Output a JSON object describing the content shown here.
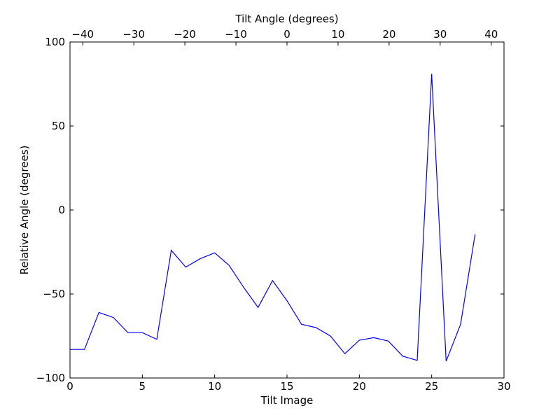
{
  "chart_data": {
    "type": "line",
    "title": "",
    "xlabel": "Tilt Image",
    "ylabel": "Relative Angle (degrees)",
    "top_xlabel": "Tilt Angle (degrees)",
    "xlim": [
      0,
      30
    ],
    "ylim": [
      -100,
      100
    ],
    "top_xlim": [
      -42.5,
      42.5
    ],
    "xticks": [
      0,
      5,
      10,
      15,
      20,
      25,
      30
    ],
    "xtick_labels": [
      "0",
      "5",
      "10",
      "15",
      "20",
      "25",
      "30"
    ],
    "yticks": [
      -100,
      -50,
      0,
      50,
      100
    ],
    "ytick_labels": [
      "−100",
      "−50",
      "0",
      "50",
      "100"
    ],
    "top_xticks": [
      -40,
      -30,
      -20,
      -10,
      0,
      10,
      20,
      30,
      40
    ],
    "top_xtick_labels": [
      "−40",
      "−30",
      "−20",
      "−10",
      "0",
      "10",
      "20",
      "30",
      "40"
    ],
    "grid": false,
    "series": [
      {
        "color": "#0000ff",
        "x": [
          0,
          1,
          2,
          3,
          4,
          5,
          6,
          7,
          8,
          9,
          10,
          11,
          12,
          13,
          14,
          15,
          16,
          17,
          18,
          19,
          20,
          21,
          22,
          23,
          24,
          25,
          26,
          27,
          28
        ],
        "y": [
          -83,
          -83,
          -61,
          -64,
          -73,
          -73,
          -77,
          -24,
          -34,
          -29,
          -25.5,
          -33,
          -46,
          -58,
          -42,
          -54,
          -68,
          -70,
          -75,
          -85.5,
          -77.5,
          -76,
          -78,
          -87,
          -89.5,
          81,
          -90,
          -68,
          -14.5
        ]
      }
    ]
  }
}
